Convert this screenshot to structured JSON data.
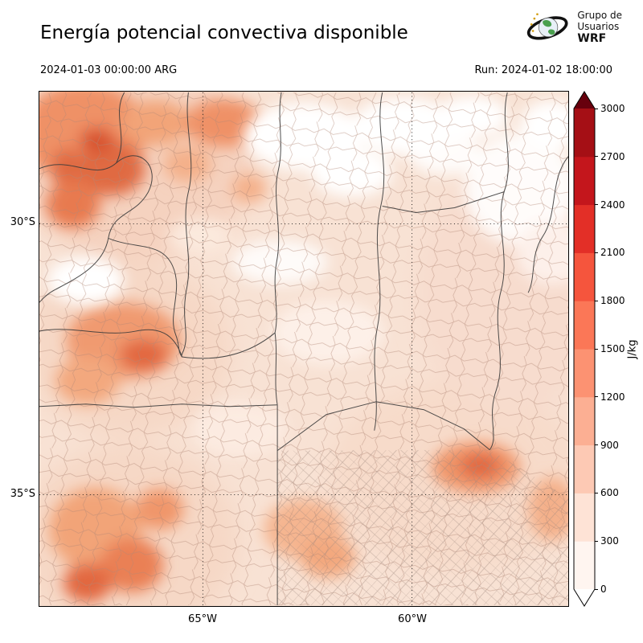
{
  "header": {
    "title": "Energía potencial convectiva disponible",
    "valid_time": "2024-01-03 00:00:00 ARG",
    "run_label": "Run: 2024-01-02 18:00:00",
    "logo": {
      "line1": "Grupo de",
      "line2": "Usuarios",
      "line3": "WRF",
      "icon": "globe-icon"
    }
  },
  "map": {
    "yticks": [
      {
        "label": "30°S"
      },
      {
        "label": "35°S"
      }
    ],
    "xticks": [
      {
        "label": "65°W"
      },
      {
        "label": "60°W"
      }
    ]
  },
  "colorbar": {
    "unit": "J/kg",
    "ticks": [
      "0",
      "300",
      "600",
      "900",
      "1200",
      "1500",
      "1800",
      "2100",
      "2400",
      "2700",
      "3000"
    ],
    "segment_colors_bottom_to_top": [
      "#fff5f0",
      "#fee3d6",
      "#fdc9b4",
      "#fcaf93",
      "#fc9272",
      "#fb7757",
      "#f5553d",
      "#e32f27",
      "#c4161c",
      "#a50f15"
    ],
    "over_color": "#67000d",
    "under_color": "#ffffff"
  }
}
